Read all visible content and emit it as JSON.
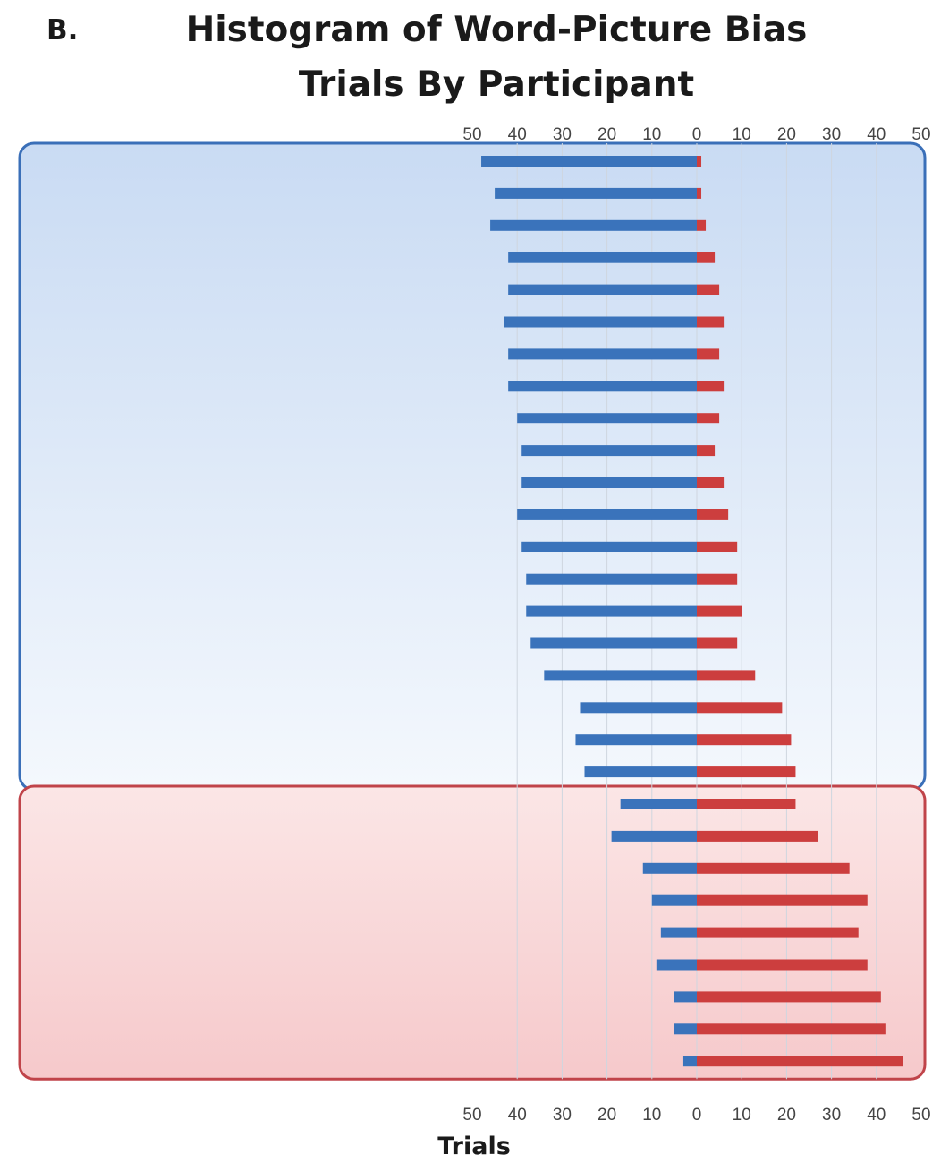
{
  "panel_label": "B.",
  "chart_data": {
    "type": "bar",
    "orientation": "horizontal-diverging",
    "title": "Histogram of Word-Picture Bias Trials By Participant",
    "title_lines": [
      "Histogram of Word-Picture Bias",
      "Trials By Participant"
    ],
    "xlabel": "Trials",
    "xlim": [
      -50,
      50
    ],
    "tick_values": [
      -50,
      -40,
      -30,
      -20,
      -10,
      0,
      10,
      20,
      30,
      40,
      50
    ],
    "tick_labels": [
      "50",
      "40",
      "30",
      "20",
      "10",
      "0",
      "10",
      "20",
      "30",
      "40",
      "50"
    ],
    "grid": true,
    "series": [
      {
        "color": "#3a73bb",
        "values": [
          48,
          45,
          46,
          42,
          42,
          43,
          42,
          42,
          40,
          39,
          39,
          40,
          39,
          38,
          38,
          37,
          34,
          26,
          27,
          25,
          17,
          19,
          12,
          10,
          8,
          9,
          5,
          5,
          3
        ]
      },
      {
        "color": "#cc3e3e",
        "values": [
          1,
          1,
          2,
          4,
          5,
          6,
          5,
          6,
          5,
          4,
          6,
          7,
          9,
          9,
          10,
          9,
          13,
          19,
          21,
          22,
          22,
          27,
          34,
          38,
          36,
          38,
          41,
          42,
          46
        ]
      }
    ],
    "groups": [
      {
        "color": "#3a6fb8",
        "first_index": 0,
        "last_index": 19
      },
      {
        "color": "#c0444a",
        "first_index": 20,
        "last_index": 28
      }
    ]
  }
}
